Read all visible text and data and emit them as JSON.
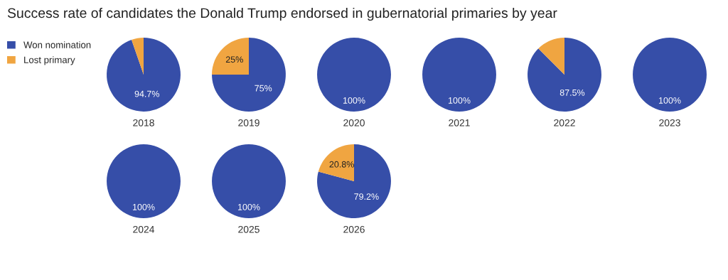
{
  "chart_data": [
    {
      "type": "pie",
      "title": "Success rate of candidates the Donald Trump endorsed in gubernatorial primaries by year",
      "xlabel": "2018",
      "categories": [
        "Won nomination",
        "Lost primary"
      ],
      "values": [
        94.7,
        5.3
      ],
      "value_labels": [
        "94.7%",
        null
      ],
      "colors": [
        "#364ea8",
        "#f0a541"
      ],
      "legend": "left"
    },
    {
      "type": "pie",
      "xlabel": "2019",
      "categories": [
        null,
        null
      ],
      "values": [
        75,
        25
      ],
      "value_labels": [
        "75%",
        "25%"
      ],
      "colors": [
        "#364ea8",
        "#f0a541"
      ]
    },
    {
      "type": "pie",
      "xlabel": "2020",
      "categories": [
        null,
        null
      ],
      "values": [
        100,
        0
      ],
      "value_labels": [
        "100%",
        null
      ],
      "colors": [
        "#364ea8",
        "#f0a541"
      ]
    },
    {
      "type": "pie",
      "xlabel": "2021",
      "categories": [
        null,
        null
      ],
      "values": [
        100,
        0
      ],
      "value_labels": [
        "100%",
        null
      ],
      "colors": [
        "#364ea8",
        "#f0a541"
      ]
    },
    {
      "type": "pie",
      "xlabel": "2022",
      "categories": [
        null,
        null
      ],
      "values": [
        87.5,
        12.5
      ],
      "value_labels": [
        "87.5%",
        null
      ],
      "colors": [
        "#364ea8",
        "#f0a541"
      ]
    },
    {
      "type": "pie",
      "xlabel": "2023",
      "categories": [
        null,
        null
      ],
      "values": [
        100,
        0
      ],
      "value_labels": [
        "100%",
        null
      ],
      "colors": [
        "#364ea8",
        "#f0a541"
      ]
    },
    {
      "type": "pie",
      "xlabel": "2024",
      "categories": [
        null,
        null
      ],
      "values": [
        100,
        0
      ],
      "value_labels": [
        "100%",
        null
      ],
      "colors": [
        "#364ea8",
        "#f0a541"
      ]
    },
    {
      "type": "pie",
      "xlabel": "2025",
      "categories": [
        null,
        null
      ],
      "values": [
        100,
        0
      ],
      "value_labels": [
        "100%",
        null
      ],
      "colors": [
        "#364ea8",
        "#f0a541"
      ]
    },
    {
      "type": "pie",
      "xlabel": "2026",
      "categories": [
        null,
        null
      ],
      "values": [
        79.2,
        20.8
      ],
      "value_labels": [
        "79.2%",
        "20.8%"
      ],
      "colors": [
        "#364ea8",
        "#f0a541"
      ]
    }
  ]
}
